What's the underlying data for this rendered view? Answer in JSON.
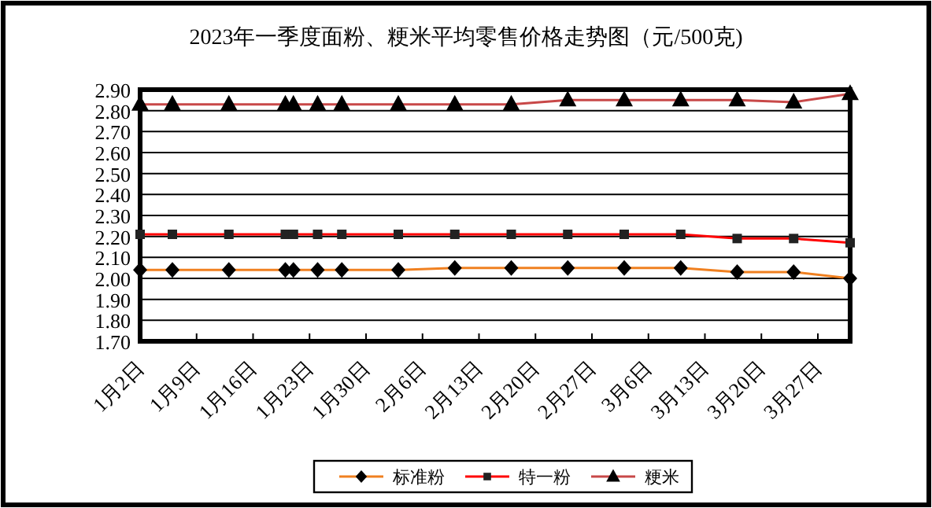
{
  "chart_data": {
    "type": "line",
    "title": "2023年一季度面粉、粳米平均零售价格走势图（元/500克)",
    "x": [
      "2023-01-02",
      "2023-01-06",
      "2023-01-13",
      "2023-01-20",
      "2023-01-21",
      "2023-01-24",
      "2023-01-27",
      "2023-02-03",
      "2023-02-10",
      "2023-02-17",
      "2023-02-24",
      "2023-03-03",
      "2023-03-10",
      "2023-03-17",
      "2023-03-24",
      "2023-03-31"
    ],
    "series": [
      {
        "name": "标准粉",
        "color": "#f08020",
        "marker": "diamond",
        "values": [
          2.04,
          2.04,
          2.04,
          2.04,
          2.04,
          2.04,
          2.04,
          2.04,
          2.05,
          2.05,
          2.05,
          2.05,
          2.05,
          2.03,
          2.03,
          2.0
        ]
      },
      {
        "name": "特一粉",
        "color": "#ff0000",
        "marker": "square",
        "values": [
          2.21,
          2.21,
          2.21,
          2.21,
          2.21,
          2.21,
          2.21,
          2.21,
          2.21,
          2.21,
          2.21,
          2.21,
          2.21,
          2.19,
          2.19,
          2.17
        ]
      },
      {
        "name": "粳米",
        "color": "#c84848",
        "marker": "triangle",
        "values": [
          2.83,
          2.83,
          2.83,
          2.83,
          2.83,
          2.83,
          2.83,
          2.83,
          2.83,
          2.83,
          2.85,
          2.85,
          2.85,
          2.85,
          2.84,
          2.88
        ]
      }
    ],
    "xlim": [
      "2023-01-02",
      "2023-03-31"
    ],
    "xticks": [
      {
        "value": "2023-01-02",
        "label": "1月2日"
      },
      {
        "value": "2023-01-09",
        "label": "1月9日"
      },
      {
        "value": "2023-01-16",
        "label": "1月16日"
      },
      {
        "value": "2023-01-23",
        "label": "1月23日"
      },
      {
        "value": "2023-01-30",
        "label": "1月30日"
      },
      {
        "value": "2023-02-06",
        "label": "2月6日"
      },
      {
        "value": "2023-02-13",
        "label": "2月13日"
      },
      {
        "value": "2023-02-20",
        "label": "2月20日"
      },
      {
        "value": "2023-02-27",
        "label": "2月27日"
      },
      {
        "value": "2023-03-06",
        "label": "3月6日"
      },
      {
        "value": "2023-03-13",
        "label": "3月13日"
      },
      {
        "value": "2023-03-20",
        "label": "3月20日"
      },
      {
        "value": "2023-03-27",
        "label": "3月27日"
      }
    ],
    "ylim": [
      1.7,
      2.9
    ],
    "yticks": [
      {
        "value": 1.7,
        "label": "1.70"
      },
      {
        "value": 1.8,
        "label": "1.80"
      },
      {
        "value": 1.9,
        "label": "1.90"
      },
      {
        "value": 2.0,
        "label": "2.00"
      },
      {
        "value": 2.1,
        "label": "2.10"
      },
      {
        "value": 2.2,
        "label": "2.20"
      },
      {
        "value": 2.3,
        "label": "2.30"
      },
      {
        "value": 2.4,
        "label": "2.40"
      },
      {
        "value": 2.5,
        "label": "2.50"
      },
      {
        "value": 2.6,
        "label": "2.60"
      },
      {
        "value": 2.7,
        "label": "2.70"
      },
      {
        "value": 2.8,
        "label": "2.80"
      },
      {
        "value": 2.9,
        "label": "2.90"
      }
    ],
    "grid": "y",
    "legend": "bottom"
  }
}
